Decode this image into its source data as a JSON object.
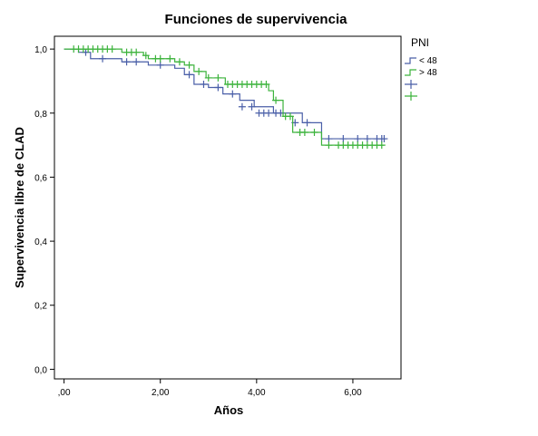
{
  "chart_data": {
    "type": "line",
    "title": "Funciones de supervivencia",
    "xlabel": "Años",
    "ylabel": "Supervivencia libre de CLAD",
    "xlim": [
      -0.2,
      7.0
    ],
    "ylim": [
      -0.03,
      1.04
    ],
    "x_ticks": [
      0,
      2,
      4,
      6
    ],
    "x_tick_labels": [
      ",00",
      "2,00",
      "4,00",
      "6,00"
    ],
    "y_ticks": [
      0,
      0.2,
      0.4,
      0.6,
      0.8,
      1.0
    ],
    "y_tick_labels": [
      "0,0",
      "0,2",
      "0,4",
      "0,6",
      "0,8",
      "1,0"
    ],
    "grid": false,
    "legend_title": "PNI",
    "legend_position": "right",
    "legend": [
      {
        "label": "< 48",
        "kind": "line",
        "color": "#4a5fa8"
      },
      {
        "label": "> 48",
        "kind": "line",
        "color": "#3cb33c"
      },
      {
        "label": "",
        "kind": "censor",
        "color": "#4a5fa8"
      },
      {
        "label": "",
        "kind": "censor",
        "color": "#3cb33c"
      }
    ],
    "series": [
      {
        "name": "< 48",
        "color": "#4a5fa8",
        "step_x": [
          0,
          0.3,
          0.55,
          1.2,
          1.75,
          2.3,
          2.5,
          2.7,
          3.0,
          3.3,
          3.65,
          3.95,
          4.35,
          4.95,
          5.35,
          6.7
        ],
        "step_y": [
          1.0,
          0.99,
          0.97,
          0.96,
          0.95,
          0.94,
          0.92,
          0.89,
          0.88,
          0.86,
          0.84,
          0.82,
          0.8,
          0.77,
          0.72,
          0.72
        ],
        "censored": [
          [
            0.45,
            0.99
          ],
          [
            0.8,
            0.97
          ],
          [
            1.3,
            0.96
          ],
          [
            1.5,
            0.96
          ],
          [
            2.0,
            0.95
          ],
          [
            2.6,
            0.92
          ],
          [
            2.9,
            0.89
          ],
          [
            3.2,
            0.88
          ],
          [
            3.5,
            0.86
          ],
          [
            3.7,
            0.82
          ],
          [
            3.9,
            0.82
          ],
          [
            4.05,
            0.8
          ],
          [
            4.15,
            0.8
          ],
          [
            4.25,
            0.8
          ],
          [
            4.4,
            0.8
          ],
          [
            4.5,
            0.8
          ],
          [
            4.8,
            0.77
          ],
          [
            5.05,
            0.77
          ],
          [
            5.5,
            0.72
          ],
          [
            5.8,
            0.72
          ],
          [
            6.1,
            0.72
          ],
          [
            6.3,
            0.72
          ],
          [
            6.5,
            0.72
          ],
          [
            6.6,
            0.72
          ],
          [
            6.65,
            0.72
          ]
        ]
      },
      {
        "name": "> 48",
        "color": "#3cb33c",
        "step_x": [
          0,
          1.2,
          1.65,
          1.75,
          2.3,
          2.5,
          2.7,
          2.95,
          3.35,
          4.25,
          4.35,
          4.55,
          4.75,
          5.35,
          6.65
        ],
        "step_y": [
          1.0,
          0.99,
          0.98,
          0.97,
          0.96,
          0.95,
          0.93,
          0.91,
          0.89,
          0.87,
          0.84,
          0.79,
          0.74,
          0.7,
          0.7
        ],
        "censored": [
          [
            0.2,
            1.0
          ],
          [
            0.3,
            1.0
          ],
          [
            0.4,
            1.0
          ],
          [
            0.5,
            1.0
          ],
          [
            0.6,
            1.0
          ],
          [
            0.7,
            1.0
          ],
          [
            0.8,
            1.0
          ],
          [
            0.9,
            1.0
          ],
          [
            1.0,
            1.0
          ],
          [
            1.3,
            0.99
          ],
          [
            1.4,
            0.99
          ],
          [
            1.5,
            0.99
          ],
          [
            1.7,
            0.98
          ],
          [
            1.9,
            0.97
          ],
          [
            2.0,
            0.97
          ],
          [
            2.2,
            0.97
          ],
          [
            2.4,
            0.96
          ],
          [
            2.6,
            0.95
          ],
          [
            2.8,
            0.93
          ],
          [
            3.0,
            0.91
          ],
          [
            3.2,
            0.91
          ],
          [
            3.4,
            0.89
          ],
          [
            3.5,
            0.89
          ],
          [
            3.6,
            0.89
          ],
          [
            3.7,
            0.89
          ],
          [
            3.8,
            0.89
          ],
          [
            3.9,
            0.89
          ],
          [
            4.0,
            0.89
          ],
          [
            4.1,
            0.89
          ],
          [
            4.2,
            0.89
          ],
          [
            4.4,
            0.84
          ],
          [
            4.6,
            0.79
          ],
          [
            4.7,
            0.79
          ],
          [
            4.9,
            0.74
          ],
          [
            5.0,
            0.74
          ],
          [
            5.2,
            0.74
          ],
          [
            5.5,
            0.7
          ],
          [
            5.7,
            0.7
          ],
          [
            5.8,
            0.7
          ],
          [
            5.9,
            0.7
          ],
          [
            6.0,
            0.7
          ],
          [
            6.1,
            0.7
          ],
          [
            6.2,
            0.7
          ],
          [
            6.3,
            0.7
          ],
          [
            6.4,
            0.7
          ],
          [
            6.5,
            0.7
          ],
          [
            6.6,
            0.7
          ]
        ]
      }
    ]
  }
}
